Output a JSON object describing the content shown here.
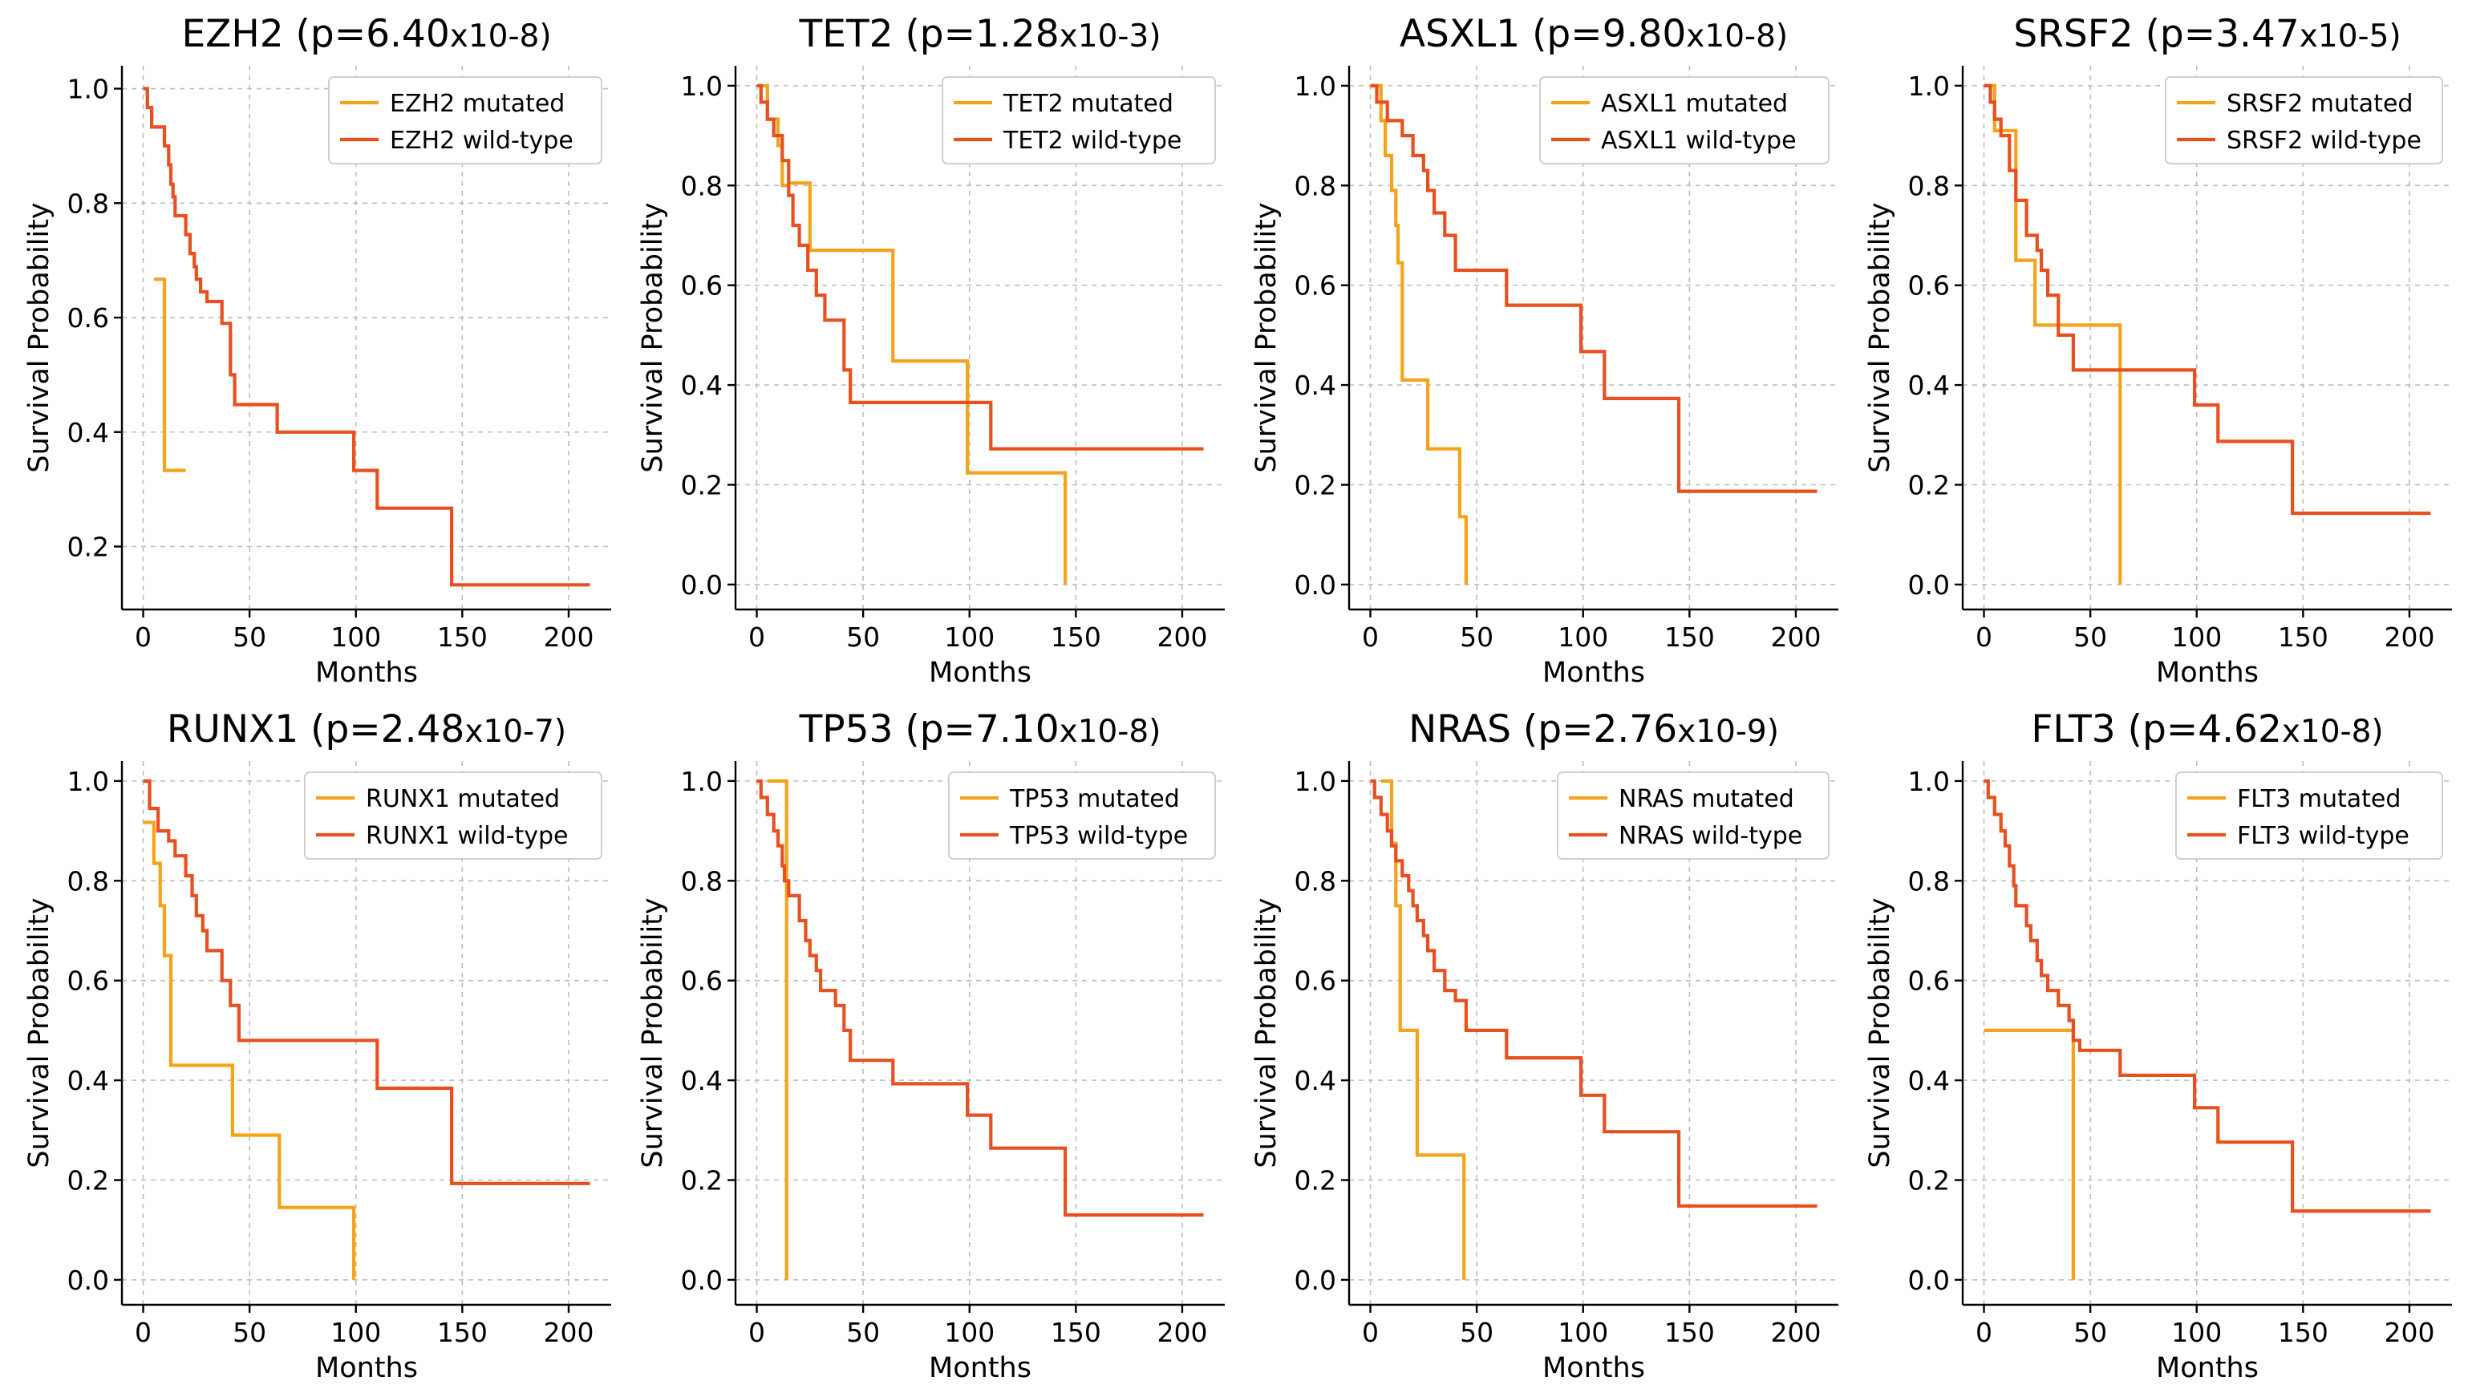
{
  "colors": {
    "mutated": "#F5A31A",
    "wildtype": "#E8501F"
  },
  "chart_data": [
    {
      "type": "line",
      "title": "EZH2 (p=6.40",
      "title_exponent": "x10-8)",
      "xlabel": "Months",
      "ylabel": "Survival Probability",
      "xlim": [
        -10,
        220
      ],
      "ylim": [
        0.09,
        1.04
      ],
      "xticks": [
        0,
        50,
        100,
        150,
        200
      ],
      "yticks": [
        0.2,
        0.4,
        0.6,
        0.8,
        1.0
      ],
      "series": [
        {
          "name": "EZH2 mutated",
          "kind": "mutated",
          "x": [
            5,
            10,
            10,
            20
          ],
          "y": [
            0.667,
            0.667,
            0.333,
            0.333
          ]
        },
        {
          "name": "EZH2 wild-type",
          "kind": "wildtype",
          "x": [
            0,
            2,
            2,
            4,
            4,
            10,
            10,
            12,
            12,
            13,
            13,
            14,
            14,
            15,
            15,
            20,
            20,
            22,
            22,
            24,
            24,
            25,
            25,
            27,
            27,
            30,
            30,
            37,
            37,
            41,
            41,
            43,
            43,
            63,
            63,
            99,
            99,
            110,
            110,
            145,
            145,
            210
          ],
          "y": [
            1.0,
            1.0,
            0.967,
            0.967,
            0.933,
            0.933,
            0.9,
            0.9,
            0.867,
            0.867,
            0.833,
            0.833,
            0.811,
            0.811,
            0.778,
            0.778,
            0.745,
            0.745,
            0.712,
            0.712,
            0.689,
            0.689,
            0.667,
            0.667,
            0.645,
            0.645,
            0.628,
            0.628,
            0.59,
            0.59,
            0.5,
            0.5,
            0.448,
            0.448,
            0.4,
            0.4,
            0.333,
            0.333,
            0.267,
            0.267,
            0.133,
            0.133
          ]
        }
      ]
    },
    {
      "type": "line",
      "title": "TET2 (p=1.28",
      "title_exponent": "x10-3)",
      "xlabel": "Months",
      "ylabel": "Survival Probability",
      "xlim": [
        -10,
        220
      ],
      "ylim": [
        -0.05,
        1.04
      ],
      "xticks": [
        0,
        50,
        100,
        150,
        200
      ],
      "yticks": [
        0.0,
        0.2,
        0.4,
        0.6,
        0.8,
        1.0
      ],
      "series": [
        {
          "name": "TET2 mutated",
          "kind": "mutated",
          "x": [
            0,
            5,
            5,
            10,
            10,
            12,
            12,
            15,
            15,
            25,
            25,
            64,
            64,
            99,
            99,
            145,
            145
          ],
          "y": [
            1.0,
            1.0,
            0.933,
            0.933,
            0.88,
            0.88,
            0.8,
            0.8,
            0.805,
            0.805,
            0.67,
            0.67,
            0.448,
            0.448,
            0.224,
            0.224,
            0.0
          ]
        },
        {
          "name": "TET2 wild-type",
          "kind": "wildtype",
          "x": [
            0,
            2,
            2,
            5,
            5,
            8,
            8,
            12,
            12,
            15,
            15,
            17,
            17,
            20,
            20,
            24,
            24,
            28,
            28,
            32,
            32,
            37,
            37,
            41,
            41,
            44,
            44,
            110,
            110,
            210
          ],
          "y": [
            1.0,
            1.0,
            0.967,
            0.967,
            0.933,
            0.933,
            0.9,
            0.9,
            0.85,
            0.85,
            0.78,
            0.78,
            0.72,
            0.72,
            0.68,
            0.68,
            0.63,
            0.63,
            0.58,
            0.58,
            0.53,
            0.53,
            0.53,
            0.53,
            0.43,
            0.43,
            0.365,
            0.365,
            0.272,
            0.272
          ]
        }
      ]
    },
    {
      "type": "line",
      "title": "ASXL1 (p=9.80",
      "title_exponent": "x10-8)",
      "xlabel": "Months",
      "ylabel": "Survival Probability",
      "xlim": [
        -10,
        220
      ],
      "ylim": [
        -0.05,
        1.04
      ],
      "xticks": [
        0,
        50,
        100,
        150,
        200
      ],
      "yticks": [
        0.0,
        0.2,
        0.4,
        0.6,
        0.8,
        1.0
      ],
      "series": [
        {
          "name": "ASXL1 mutated",
          "kind": "mutated",
          "x": [
            0,
            5,
            5,
            7,
            7,
            10,
            10,
            12,
            12,
            13,
            13,
            15,
            15,
            16,
            16,
            27,
            27,
            42,
            42,
            45,
            45
          ],
          "y": [
            1.0,
            1.0,
            0.93,
            0.93,
            0.86,
            0.86,
            0.79,
            0.79,
            0.72,
            0.72,
            0.645,
            0.645,
            0.41,
            0.41,
            0.41,
            0.41,
            0.272,
            0.272,
            0.136,
            0.136,
            0.0
          ]
        },
        {
          "name": "ASXL1 wild-type",
          "kind": "wildtype",
          "x": [
            0,
            3,
            3,
            8,
            8,
            15,
            15,
            20,
            20,
            25,
            25,
            27,
            27,
            30,
            30,
            35,
            35,
            40,
            40,
            45,
            45,
            64,
            64,
            99,
            99,
            110,
            110,
            145,
            145,
            210
          ],
          "y": [
            1.0,
            1.0,
            0.967,
            0.967,
            0.93,
            0.93,
            0.9,
            0.9,
            0.86,
            0.86,
            0.83,
            0.83,
            0.79,
            0.79,
            0.745,
            0.745,
            0.7,
            0.7,
            0.63,
            0.63,
            0.63,
            0.63,
            0.56,
            0.56,
            0.467,
            0.467,
            0.373,
            0.373,
            0.187,
            0.187
          ]
        }
      ]
    },
    {
      "type": "line",
      "title": "SRSF2 (p=3.47",
      "title_exponent": "x10-5)",
      "xlabel": "Months",
      "ylabel": "Survival Probability",
      "xlim": [
        -10,
        220
      ],
      "ylim": [
        -0.05,
        1.04
      ],
      "xticks": [
        0,
        50,
        100,
        150,
        200
      ],
      "yticks": [
        0.0,
        0.2,
        0.4,
        0.6,
        0.8,
        1.0
      ],
      "series": [
        {
          "name": "SRSF2 mutated",
          "kind": "mutated",
          "x": [
            0,
            5,
            5,
            15,
            15,
            24,
            24,
            64,
            64
          ],
          "y": [
            1.0,
            1.0,
            0.91,
            0.91,
            0.65,
            0.65,
            0.52,
            0.52,
            0.0
          ]
        },
        {
          "name": "SRSF2 wild-type",
          "kind": "wildtype",
          "x": [
            0,
            3,
            3,
            5,
            5,
            8,
            8,
            12,
            12,
            15,
            15,
            20,
            20,
            25,
            25,
            27,
            27,
            30,
            30,
            35,
            35,
            42,
            42,
            99,
            99,
            110,
            110,
            145,
            145,
            210
          ],
          "y": [
            1.0,
            1.0,
            0.967,
            0.967,
            0.933,
            0.933,
            0.9,
            0.9,
            0.83,
            0.83,
            0.77,
            0.77,
            0.7,
            0.7,
            0.67,
            0.67,
            0.63,
            0.63,
            0.58,
            0.58,
            0.5,
            0.5,
            0.43,
            0.43,
            0.36,
            0.36,
            0.287,
            0.287,
            0.143,
            0.143
          ]
        }
      ]
    },
    {
      "type": "line",
      "title": "RUNX1 (p=2.48",
      "title_exponent": "x10-7)",
      "xlabel": "Months",
      "ylabel": "Survival Probability",
      "xlim": [
        -10,
        220
      ],
      "ylim": [
        -0.05,
        1.04
      ],
      "xticks": [
        0,
        50,
        100,
        150,
        200
      ],
      "yticks": [
        0.0,
        0.2,
        0.4,
        0.6,
        0.8,
        1.0
      ],
      "series": [
        {
          "name": "RUNX1 mutated",
          "kind": "mutated",
          "x": [
            0,
            5,
            5,
            8,
            8,
            10,
            10,
            13,
            13,
            42,
            42,
            64,
            64,
            99,
            99
          ],
          "y": [
            0.917,
            0.917,
            0.835,
            0.835,
            0.75,
            0.75,
            0.65,
            0.65,
            0.43,
            0.43,
            0.29,
            0.29,
            0.145,
            0.145,
            0.0
          ]
        },
        {
          "name": "RUNX1 wild-type",
          "kind": "wildtype",
          "x": [
            0,
            3,
            3,
            7,
            7,
            12,
            12,
            15,
            15,
            20,
            20,
            23,
            23,
            25,
            25,
            28,
            28,
            30,
            30,
            37,
            37,
            41,
            41,
            45,
            45,
            110,
            110,
            145,
            145,
            210
          ],
          "y": [
            1.0,
            1.0,
            0.945,
            0.945,
            0.9,
            0.9,
            0.88,
            0.88,
            0.85,
            0.85,
            0.81,
            0.81,
            0.77,
            0.77,
            0.73,
            0.73,
            0.7,
            0.7,
            0.66,
            0.66,
            0.6,
            0.6,
            0.55,
            0.55,
            0.48,
            0.48,
            0.384,
            0.384,
            0.193,
            0.193
          ]
        }
      ]
    },
    {
      "type": "line",
      "title": "TP53 (p=7.10",
      "title_exponent": "x10-8)",
      "xlabel": "Months",
      "ylabel": "Survival Probability",
      "xlim": [
        -10,
        220
      ],
      "ylim": [
        -0.05,
        1.04
      ],
      "xticks": [
        0,
        50,
        100,
        150,
        200
      ],
      "yticks": [
        0.0,
        0.2,
        0.4,
        0.6,
        0.8,
        1.0
      ],
      "series": [
        {
          "name": "TP53 mutated",
          "kind": "mutated",
          "x": [
            5,
            14,
            14
          ],
          "y": [
            1.0,
            1.0,
            0.0
          ]
        },
        {
          "name": "TP53 wild-type",
          "kind": "wildtype",
          "x": [
            0,
            2,
            2,
            5,
            5,
            8,
            8,
            10,
            10,
            12,
            12,
            13,
            13,
            15,
            15,
            20,
            20,
            23,
            23,
            25,
            25,
            28,
            28,
            30,
            30,
            37,
            37,
            41,
            41,
            44,
            44,
            64,
            64,
            99,
            99,
            110,
            110,
            145,
            145,
            210
          ],
          "y": [
            1.0,
            1.0,
            0.967,
            0.967,
            0.933,
            0.933,
            0.9,
            0.9,
            0.87,
            0.87,
            0.83,
            0.83,
            0.8,
            0.8,
            0.77,
            0.77,
            0.72,
            0.72,
            0.68,
            0.68,
            0.65,
            0.65,
            0.62,
            0.62,
            0.58,
            0.58,
            0.55,
            0.55,
            0.5,
            0.5,
            0.44,
            0.44,
            0.393,
            0.393,
            0.33,
            0.33,
            0.264,
            0.264,
            0.13,
            0.13
          ]
        }
      ]
    },
    {
      "type": "line",
      "title": "NRAS (p=2.76",
      "title_exponent": "x10-9)",
      "xlabel": "Months",
      "ylabel": "Survival Probability",
      "xlim": [
        -10,
        220
      ],
      "ylim": [
        -0.05,
        1.04
      ],
      "xticks": [
        0,
        50,
        100,
        150,
        200
      ],
      "yticks": [
        0.0,
        0.2,
        0.4,
        0.6,
        0.8,
        1.0
      ],
      "series": [
        {
          "name": "NRAS mutated",
          "kind": "mutated",
          "x": [
            5,
            10,
            10,
            12,
            12,
            14,
            14,
            22,
            22,
            44,
            44
          ],
          "y": [
            1.0,
            1.0,
            0.875,
            0.875,
            0.75,
            0.75,
            0.5,
            0.5,
            0.25,
            0.25,
            0.0
          ]
        },
        {
          "name": "NRAS wild-type",
          "kind": "wildtype",
          "x": [
            0,
            2,
            2,
            5,
            5,
            8,
            8,
            10,
            10,
            12,
            12,
            15,
            15,
            18,
            18,
            20,
            20,
            22,
            22,
            25,
            25,
            27,
            27,
            30,
            30,
            35,
            35,
            40,
            40,
            45,
            45,
            64,
            64,
            99,
            99,
            110,
            110,
            145,
            145,
            210
          ],
          "y": [
            1.0,
            1.0,
            0.967,
            0.967,
            0.933,
            0.933,
            0.9,
            0.9,
            0.87,
            0.87,
            0.84,
            0.84,
            0.81,
            0.81,
            0.78,
            0.78,
            0.75,
            0.75,
            0.72,
            0.72,
            0.69,
            0.69,
            0.66,
            0.66,
            0.62,
            0.62,
            0.58,
            0.58,
            0.56,
            0.56,
            0.5,
            0.5,
            0.445,
            0.445,
            0.37,
            0.37,
            0.297,
            0.297,
            0.148,
            0.148
          ]
        }
      ]
    },
    {
      "type": "line",
      "title": "FLT3 (p=4.62",
      "title_exponent": "x10-8)",
      "xlabel": "Months",
      "ylabel": "Survival Probability",
      "xlim": [
        -10,
        220
      ],
      "ylim": [
        -0.05,
        1.04
      ],
      "xticks": [
        0,
        50,
        100,
        150,
        200
      ],
      "yticks": [
        0.0,
        0.2,
        0.4,
        0.6,
        0.8,
        1.0
      ],
      "series": [
        {
          "name": "FLT3 mutated",
          "kind": "mutated",
          "x": [
            0,
            42,
            42
          ],
          "y": [
            0.5,
            0.5,
            0.0
          ]
        },
        {
          "name": "FLT3 wild-type",
          "kind": "wildtype",
          "x": [
            0,
            2,
            2,
            5,
            5,
            8,
            8,
            10,
            10,
            12,
            12,
            14,
            14,
            15,
            15,
            20,
            20,
            22,
            22,
            25,
            25,
            27,
            27,
            30,
            30,
            35,
            35,
            40,
            40,
            42,
            42,
            45,
            45,
            64,
            64,
            99,
            99,
            110,
            110,
            145,
            145,
            210
          ],
          "y": [
            1.0,
            1.0,
            0.967,
            0.967,
            0.933,
            0.933,
            0.9,
            0.9,
            0.87,
            0.87,
            0.83,
            0.83,
            0.79,
            0.79,
            0.75,
            0.75,
            0.71,
            0.71,
            0.68,
            0.68,
            0.64,
            0.64,
            0.61,
            0.61,
            0.58,
            0.58,
            0.55,
            0.55,
            0.52,
            0.52,
            0.48,
            0.48,
            0.46,
            0.46,
            0.41,
            0.41,
            0.345,
            0.345,
            0.276,
            0.276,
            0.138,
            0.138
          ]
        }
      ]
    }
  ]
}
